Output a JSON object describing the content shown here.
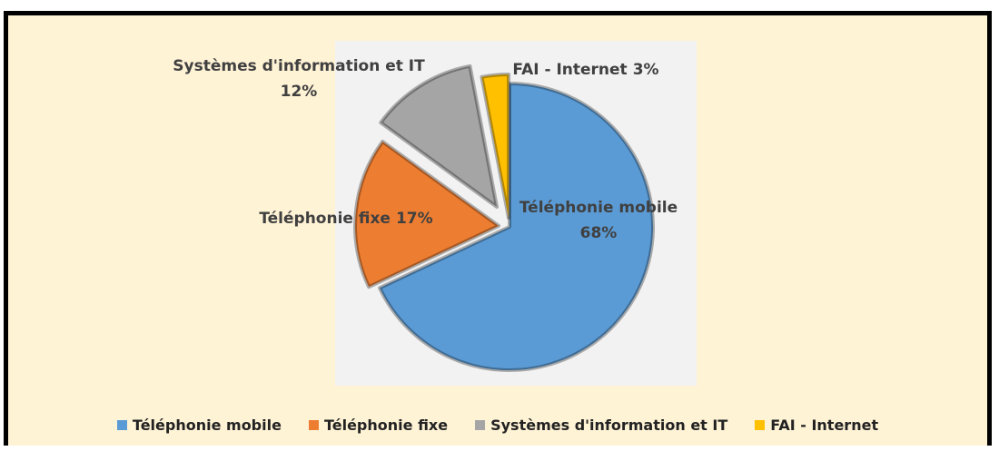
{
  "chart_data": {
    "type": "pie",
    "categories": [
      "Téléphonie mobile",
      "Téléphonie fixe",
      "Systèmes d'information et IT",
      "FAI - Internet"
    ],
    "values": [
      68,
      17,
      12,
      3
    ],
    "value_labels": [
      "68%",
      "17%",
      "12%",
      "3%"
    ],
    "colors": [
      "#5b9bd5",
      "#ed7d31",
      "#a5a5a5",
      "#ffc000"
    ],
    "legend": "bottom"
  }
}
